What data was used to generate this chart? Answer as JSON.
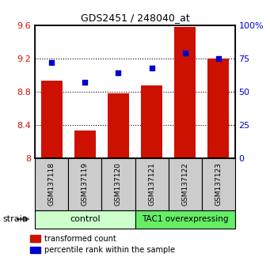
{
  "title": "GDS2451 / 248040_at",
  "samples": [
    "GSM137118",
    "GSM137119",
    "GSM137120",
    "GSM137121",
    "GSM137122",
    "GSM137123"
  ],
  "transformed_counts": [
    8.93,
    8.33,
    8.78,
    8.88,
    9.58,
    9.2
  ],
  "percentile_ranks": [
    72,
    57,
    64,
    68,
    79,
    75
  ],
  "ylim_left": [
    8.0,
    9.6
  ],
  "ylim_right": [
    0,
    100
  ],
  "yticks_left": [
    8.0,
    8.4,
    8.8,
    9.2,
    9.6
  ],
  "ytick_labels_left": [
    "8",
    "8.4",
    "8.8",
    "9.2",
    "9.6"
  ],
  "yticks_right": [
    0,
    25,
    50,
    75,
    100
  ],
  "ytick_labels_right": [
    "0",
    "25",
    "50",
    "75",
    "100%"
  ],
  "bar_color": "#cc1100",
  "dot_color": "#0000cc",
  "sample_box_color": "#cccccc",
  "control_color": "#ccffcc",
  "overexp_color": "#66ee66",
  "control_label": "control",
  "overexp_label": "TAC1 overexpressing",
  "strain_label": "strain",
  "legend_bar_label": "transformed count",
  "legend_dot_label": "percentile rank within the sample",
  "bar_width": 0.65,
  "grid_color": "black",
  "grid_linestyle": "dotted",
  "grid_linewidth": 0.8
}
